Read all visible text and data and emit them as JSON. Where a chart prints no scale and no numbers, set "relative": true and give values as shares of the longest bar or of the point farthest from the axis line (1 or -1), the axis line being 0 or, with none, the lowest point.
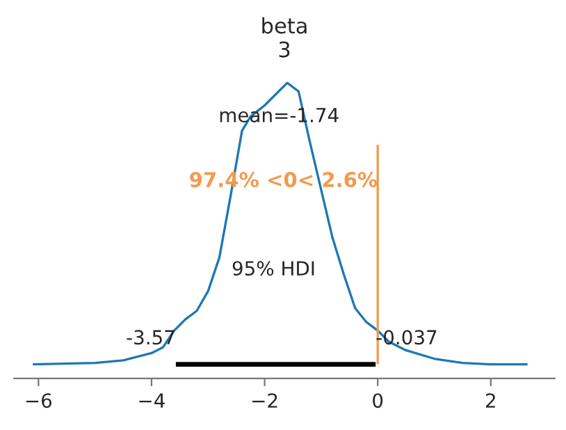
{
  "chart_data": {
    "type": "line",
    "title": "beta\n3",
    "relative": true,
    "x": [
      -6.1,
      -5.0,
      -4.5,
      -4.0,
      -3.8,
      -3.6,
      -3.5,
      -3.4,
      -3.2,
      -3.0,
      -2.8,
      -2.6,
      -2.4,
      -2.25,
      -2.0,
      -1.8,
      -1.6,
      -1.4,
      -1.2,
      -1.0,
      -0.8,
      -0.6,
      -0.4,
      -0.2,
      0.0,
      0.2,
      0.5,
      1.0,
      1.5,
      2.0,
      2.65
    ],
    "series": [
      {
        "color": "#1f77b4",
        "values": [
          0,
          0.005,
          0.014,
          0.04,
          0.06,
          0.12,
          0.14,
          0.16,
          0.19,
          0.26,
          0.38,
          0.6,
          0.83,
          0.88,
          0.92,
          0.96,
          1.0,
          0.97,
          0.79,
          0.62,
          0.45,
          0.32,
          0.2,
          0.15,
          0.12,
          0.08,
          0.05,
          0.02,
          0.005,
          0,
          0
        ]
      },
      {
        "color": "#000000",
        "x": [
          -3.57,
          -0.037
        ],
        "values": [
          0,
          0
        ]
      }
    ],
    "xticks": [
      {
        "value": -6,
        "label": "−6"
      },
      {
        "value": -4,
        "label": "−4"
      },
      {
        "value": -2,
        "label": "−2"
      },
      {
        "value": 0,
        "label": "0"
      },
      {
        "value": 2,
        "label": "2"
      }
    ],
    "xlim": [
      -6.43,
      3.13
    ],
    "ref_lines": [
      {
        "axis": "x",
        "value": 0,
        "label": "97.4% <0< 2.6%",
        "color": "#f39a4e"
      }
    ],
    "annotations": [
      "mean=-1.74",
      "95% HDI",
      {
        "text": "-3.57",
        "x": -3.57,
        "y": 0
      },
      {
        "text": "-0.037",
        "x": -0.037,
        "y": 0
      }
    ],
    "grid": false,
    "legend": false,
    "marker": "none",
    "line_style": "solid"
  }
}
